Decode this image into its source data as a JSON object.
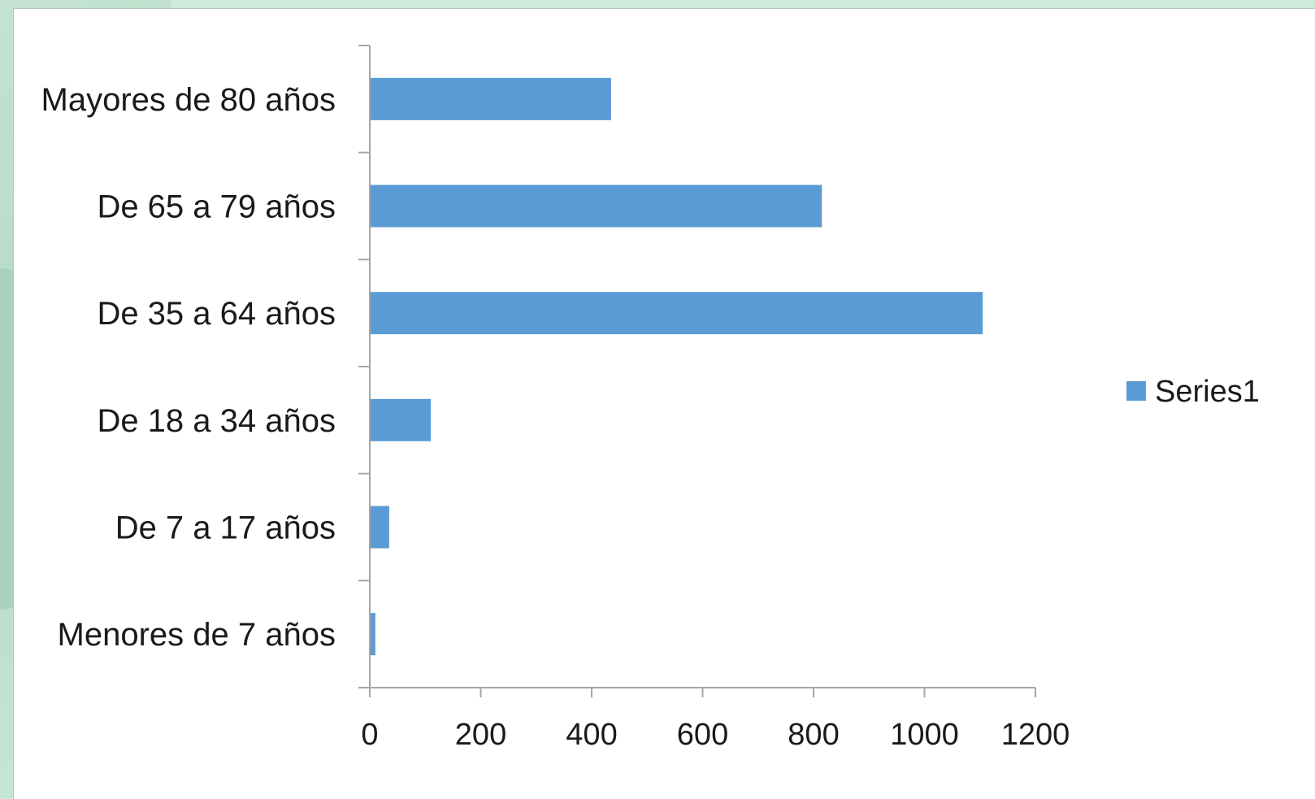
{
  "chart_data": {
    "type": "bar",
    "orientation": "horizontal",
    "categories": [
      "Menores de 7 años",
      "De 7 a 17 años",
      "De 18 a 34 años",
      "De 35 a 64 años",
      "De 65 a 79 años",
      "Mayores de 80 años"
    ],
    "series": [
      {
        "name": "Series1",
        "values": [
          10,
          35,
          110,
          1105,
          815,
          435
        ]
      }
    ],
    "xlim": [
      0,
      1200
    ],
    "xticks": [
      "0",
      "200",
      "400",
      "600",
      "800",
      "1000",
      "1200"
    ],
    "title": "",
    "xlabel": "",
    "ylabel": "",
    "grid": false,
    "legend_position": "right",
    "colors": {
      "bar": "#5b9bd5",
      "axis": "#a6a6a6"
    }
  }
}
